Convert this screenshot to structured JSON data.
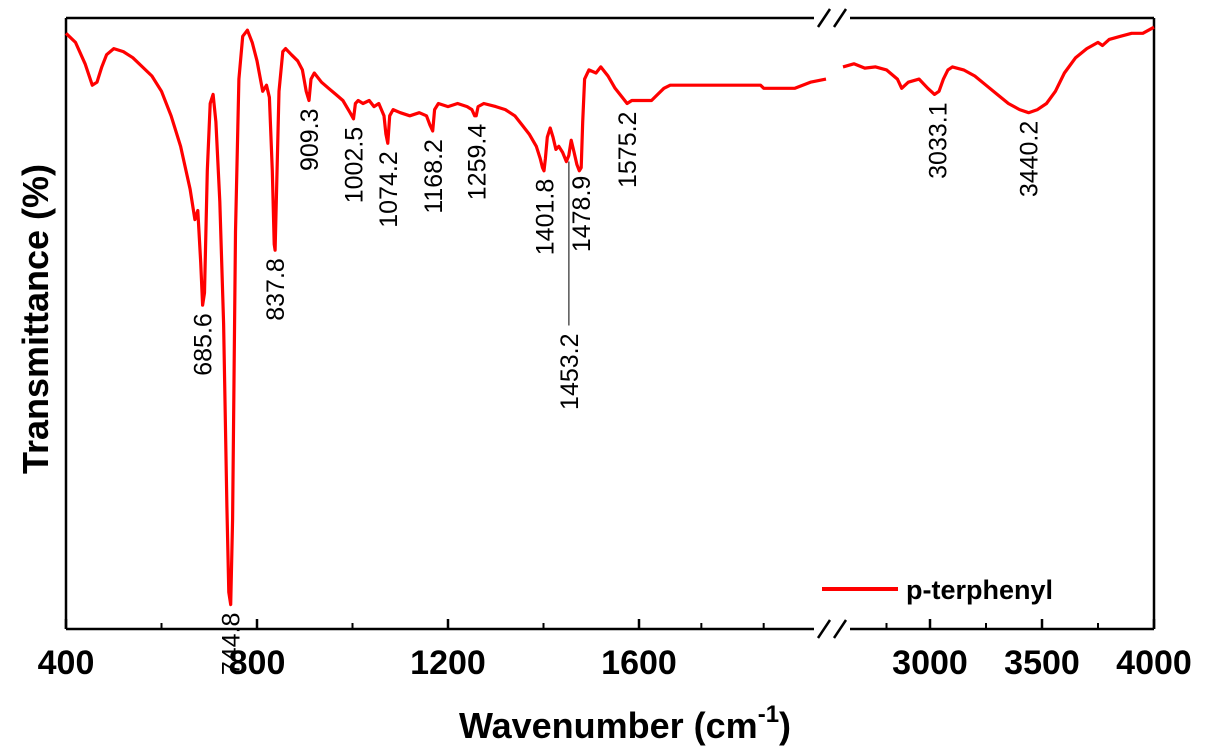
{
  "colors": {
    "series": "#ff0000",
    "axis": "#000000",
    "background": "#ffffff"
  },
  "chart_data": {
    "type": "line",
    "title": "",
    "xlabel": "Wavenumber (cm",
    "xlabel_sup": "-1",
    "xlabel_close": ")",
    "ylabel": "Transmittance (%)",
    "x_axis_break": true,
    "xlim_segments": [
      [
        400,
        2200
      ],
      [
        2600,
        4000
      ]
    ],
    "xticks": [
      {
        "value": 400,
        "label": "400"
      },
      {
        "value": 800,
        "label": "800"
      },
      {
        "value": 1200,
        "label": "1200"
      },
      {
        "value": 1600,
        "label": "1600"
      },
      {
        "value": 3000,
        "label": "3000"
      },
      {
        "value": 3500,
        "label": "3500"
      },
      {
        "value": 4000,
        "label": "4000"
      }
    ],
    "ylim": [
      0,
      100
    ],
    "yticks_shown": false,
    "grid": false,
    "legend": {
      "position": "bottom-right",
      "entries": [
        "p-terphenyl"
      ]
    },
    "series": [
      {
        "name": "p-terphenyl",
        "color": "#ff0000",
        "segments": [
          [
            [
              400,
              97.5
            ],
            [
              420,
              96
            ],
            [
              440,
              92.5
            ],
            [
              455,
              89
            ],
            [
              465,
              89.5
            ],
            [
              475,
              92
            ],
            [
              485,
              94
            ],
            [
              500,
              95
            ],
            [
              520,
              94.5
            ],
            [
              540,
              93.5
            ],
            [
              560,
              92
            ],
            [
              580,
              90.5
            ],
            [
              600,
              88
            ],
            [
              620,
              84
            ],
            [
              640,
              79
            ],
            [
              660,
              72
            ],
            [
              670,
              67
            ],
            [
              676,
              68.5
            ],
            [
              682,
              60
            ],
            [
              686,
              53
            ],
            [
              690,
              55
            ],
            [
              696,
              75
            ],
            [
              702,
              86
            ],
            [
              708,
              87.5
            ],
            [
              714,
              83
            ],
            [
              722,
              70
            ],
            [
              730,
              50
            ],
            [
              737,
              20
            ],
            [
              741,
              6
            ],
            [
              745,
              4
            ],
            [
              749,
              18
            ],
            [
              755,
              65
            ],
            [
              762,
              90
            ],
            [
              770,
              97
            ],
            [
              780,
              98
            ],
            [
              790,
              96
            ],
            [
              800,
              93
            ],
            [
              812,
              88
            ],
            [
              820,
              89
            ],
            [
              826,
              87
            ],
            [
              832,
              75
            ],
            [
              836,
              63
            ],
            [
              838,
              62
            ],
            [
              841,
              72
            ],
            [
              846,
              88
            ],
            [
              854,
              94.5
            ],
            [
              860,
              95
            ],
            [
              872,
              94
            ],
            [
              885,
              93
            ],
            [
              895,
              91.5
            ],
            [
              903,
              88
            ],
            [
              909,
              86.5
            ],
            [
              913,
              90
            ],
            [
              920,
              91
            ],
            [
              935,
              89.5
            ],
            [
              950,
              88.5
            ],
            [
              965,
              87.5
            ],
            [
              980,
              86.5
            ],
            [
              995,
              84.5
            ],
            [
              1002,
              83.5
            ],
            [
              1006,
              86
            ],
            [
              1012,
              86.5
            ],
            [
              1022,
              86
            ],
            [
              1035,
              86.5
            ],
            [
              1045,
              85.5
            ],
            [
              1055,
              86
            ],
            [
              1066,
              84
            ],
            [
              1070,
              81
            ],
            [
              1074,
              79.5
            ],
            [
              1078,
              84
            ],
            [
              1085,
              85
            ],
            [
              1100,
              84.5
            ],
            [
              1120,
              84
            ],
            [
              1140,
              84.5
            ],
            [
              1155,
              84
            ],
            [
              1162,
              82.5
            ],
            [
              1168,
              81.5
            ],
            [
              1172,
              85
            ],
            [
              1180,
              86
            ],
            [
              1200,
              85.5
            ],
            [
              1220,
              86
            ],
            [
              1240,
              85.5
            ],
            [
              1250,
              85
            ],
            [
              1256,
              84
            ],
            [
              1259,
              84
            ],
            [
              1263,
              85.5
            ],
            [
              1275,
              86
            ],
            [
              1300,
              85.5
            ],
            [
              1320,
              85
            ],
            [
              1340,
              84
            ],
            [
              1355,
              82.5
            ],
            [
              1370,
              81
            ],
            [
              1385,
              79
            ],
            [
              1393,
              77
            ],
            [
              1398,
              75.5
            ],
            [
              1401,
              75
            ],
            [
              1404,
              77
            ],
            [
              1408,
              80.5
            ],
            [
              1414,
              82
            ],
            [
              1420,
              80.5
            ],
            [
              1426,
              78.5
            ],
            [
              1432,
              79
            ],
            [
              1440,
              78
            ],
            [
              1448,
              76.5
            ],
            [
              1453,
              77.5
            ],
            [
              1458,
              80
            ],
            [
              1464,
              78
            ],
            [
              1470,
              76
            ],
            [
              1475,
              75
            ],
            [
              1479,
              75.5
            ],
            [
              1482,
              83
            ],
            [
              1486,
              90
            ],
            [
              1495,
              91.5
            ],
            [
              1510,
              91
            ],
            [
              1520,
              92
            ],
            [
              1535,
              90.5
            ],
            [
              1550,
              88.5
            ],
            [
              1565,
              87
            ],
            [
              1575,
              86
            ],
            [
              1585,
              86.5
            ],
            [
              1600,
              86.5
            ],
            [
              1620,
              86.5
            ],
            [
              1640,
              86.5
            ],
            [
              1660,
              87.5
            ],
            [
              1680,
              88.5
            ],
            [
              1700,
              89
            ],
            [
              1800,
              89
            ],
            [
              1900,
              89
            ],
            [
              1950,
              89
            ],
            [
              1990,
              89
            ],
            [
              2000,
              88.5
            ],
            [
              2050,
              88.5
            ],
            [
              2100,
              88.5
            ],
            [
              2150,
              89.5
            ],
            [
              2200,
              90
            ]
          ],
          [
            [
              2600,
              92
            ],
            [
              2650,
              92.5
            ],
            [
              2700,
              91.8
            ],
            [
              2750,
              92
            ],
            [
              2800,
              91.5
            ],
            [
              2850,
              90
            ],
            [
              2870,
              88.5
            ],
            [
              2900,
              89.5
            ],
            [
              2950,
              90
            ],
            [
              2990,
              88.5
            ],
            [
              3020,
              87.5
            ],
            [
              3040,
              88
            ],
            [
              3060,
              90
            ],
            [
              3080,
              91.5
            ],
            [
              3100,
              92
            ],
            [
              3150,
              91.5
            ],
            [
              3200,
              90.5
            ],
            [
              3250,
              89
            ],
            [
              3300,
              87.5
            ],
            [
              3350,
              86
            ],
            [
              3400,
              85
            ],
            [
              3440,
              84.5
            ],
            [
              3480,
              85
            ],
            [
              3520,
              86
            ],
            [
              3560,
              88
            ],
            [
              3600,
              91
            ],
            [
              3650,
              93.5
            ],
            [
              3700,
              95
            ],
            [
              3750,
              96
            ],
            [
              3770,
              95.5
            ],
            [
              3800,
              96.5
            ],
            [
              3850,
              97
            ],
            [
              3900,
              97.5
            ],
            [
              3950,
              97.5
            ],
            [
              4000,
              98.5
            ]
          ]
        ]
      }
    ],
    "annotations": [
      {
        "text": "685.6",
        "x": 685.6,
        "y": 53,
        "placement": "below"
      },
      {
        "text": "744.8",
        "x": 744.8,
        "y": 4,
        "placement": "below"
      },
      {
        "text": "837.8",
        "x": 837.8,
        "y": 62,
        "placement": "below"
      },
      {
        "text": "909.3",
        "x": 909.3,
        "y": 86.5,
        "placement": "below"
      },
      {
        "text": "1002.5",
        "x": 1002.5,
        "y": 83.5,
        "placement": "below"
      },
      {
        "text": "1074.2",
        "x": 1074.2,
        "y": 79.5,
        "placement": "below"
      },
      {
        "text": "1168.2",
        "x": 1168.2,
        "y": 81.5,
        "placement": "below"
      },
      {
        "text": "1259.4",
        "x": 1259.4,
        "y": 84,
        "placement": "below"
      },
      {
        "text": "1401.8",
        "x": 1401.8,
        "y": 75,
        "placement": "below"
      },
      {
        "text": "1453.2",
        "x": 1453.2,
        "y": 77.5,
        "placement": "leader-below"
      },
      {
        "text": "1478.9",
        "x": 1478.9,
        "y": 75.5,
        "placement": "below"
      },
      {
        "text": "1575.2",
        "x": 1575.2,
        "y": 86,
        "placement": "below"
      },
      {
        "text": "3033.1",
        "x": 3033.1,
        "y": 87.5,
        "placement": "below"
      },
      {
        "text": "3440.2",
        "x": 3440.2,
        "y": 84.5,
        "placement": "below"
      }
    ]
  }
}
